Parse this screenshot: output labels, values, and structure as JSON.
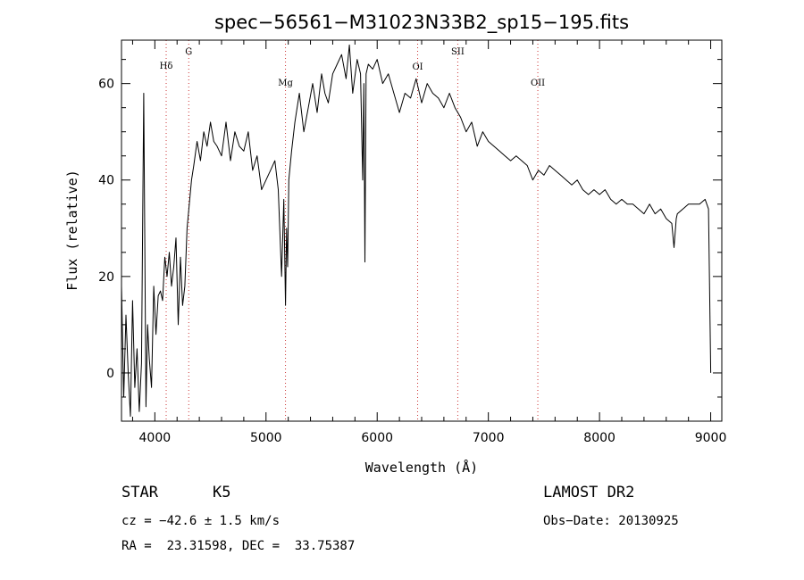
{
  "chart_data": {
    "type": "line",
    "title": "spec−56561−M31023N33B2_sp15−195.fits",
    "xlabel": "Wavelength (Å)",
    "ylabel": "Flux (relative)",
    "xlim": [
      3700,
      9100
    ],
    "ylim": [
      -10,
      69
    ],
    "xticks": [
      4000,
      5000,
      6000,
      7000,
      8000,
      9000
    ],
    "yticks": [
      0,
      20,
      40,
      60
    ],
    "spectral_lines": [
      {
        "label": "Hδ",
        "x": 4102
      },
      {
        "label": "G",
        "x": 4305
      },
      {
        "label": "Mg",
        "x": 5175
      },
      {
        "label": "OI",
        "x": 6364
      },
      {
        "label": "SII",
        "x": 6725
      },
      {
        "label": "OII",
        "x": 7445
      }
    ],
    "series": [
      {
        "x": [
          3700,
          3720,
          3740,
          3760,
          3780,
          3800,
          3820,
          3840,
          3860,
          3880,
          3900,
          3920,
          3935,
          3950,
          3970,
          3990,
          4010,
          4030,
          4050,
          4070,
          4090,
          4110,
          4130,
          4150,
          4170,
          4190,
          4210,
          4230,
          4250,
          4270,
          4290,
          4310,
          4330,
          4350,
          4380,
          4410,
          4440,
          4470,
          4500,
          4530,
          4560,
          4600,
          4640,
          4680,
          4720,
          4760,
          4800,
          4840,
          4880,
          4920,
          4960,
          5000,
          5040,
          5080,
          5110,
          5140,
          5160,
          5175,
          5185,
          5195,
          5205,
          5230,
          5260,
          5300,
          5340,
          5380,
          5420,
          5460,
          5500,
          5530,
          5560,
          5600,
          5640,
          5680,
          5720,
          5750,
          5780,
          5820,
          5850,
          5870,
          5880,
          5890,
          5900,
          5920,
          5960,
          6000,
          6050,
          6100,
          6150,
          6200,
          6250,
          6300,
          6350,
          6400,
          6450,
          6500,
          6550,
          6600,
          6650,
          6700,
          6750,
          6800,
          6850,
          6900,
          6950,
          7000,
          7050,
          7100,
          7150,
          7200,
          7250,
          7300,
          7350,
          7400,
          7450,
          7500,
          7550,
          7600,
          7650,
          7700,
          7750,
          7800,
          7850,
          7900,
          7950,
          8000,
          8050,
          8100,
          8150,
          8200,
          8250,
          8300,
          8350,
          8400,
          8450,
          8500,
          8550,
          8600,
          8650,
          8670,
          8690,
          8700,
          8750,
          8800,
          8850,
          8900,
          8950,
          8980,
          9000
        ],
        "y": [
          18,
          -5,
          12,
          0,
          -9,
          15,
          -3,
          5,
          -8,
          2,
          58,
          -7,
          10,
          3,
          -3,
          18,
          8,
          16,
          17,
          15,
          24,
          20,
          25,
          18,
          22,
          28,
          10,
          24,
          14,
          18,
          30,
          35,
          40,
          43,
          48,
          44,
          50,
          47,
          52,
          48,
          47,
          45,
          52,
          44,
          50,
          47,
          46,
          50,
          42,
          45,
          38,
          40,
          42,
          44,
          38,
          20,
          36,
          14,
          30,
          22,
          40,
          46,
          52,
          58,
          50,
          55,
          60,
          54,
          62,
          58,
          56,
          62,
          64,
          66,
          61,
          68,
          58,
          65,
          62,
          40,
          60,
          23,
          62,
          64,
          63,
          65,
          60,
          62,
          58,
          54,
          58,
          57,
          61,
          56,
          60,
          58,
          57,
          55,
          58,
          55,
          53,
          50,
          52,
          47,
          50,
          48,
          47,
          46,
          45,
          44,
          45,
          44,
          43,
          40,
          42,
          41,
          43,
          42,
          41,
          40,
          39,
          40,
          38,
          37,
          38,
          37,
          38,
          36,
          35,
          36,
          35,
          35,
          34,
          33,
          35,
          33,
          34,
          32,
          31,
          26,
          32,
          33,
          34,
          35,
          35,
          35,
          36,
          34,
          0
        ]
      }
    ]
  },
  "info": {
    "class_label": "STAR",
    "subclass": "K5",
    "survey": "LAMOST DR2",
    "velocity": "cz = −42.6 ± 1.5 km/s",
    "obs_date": "Obs−Date: 20130925",
    "coords": "RA =  23.31598, DEC =  33.75387"
  }
}
